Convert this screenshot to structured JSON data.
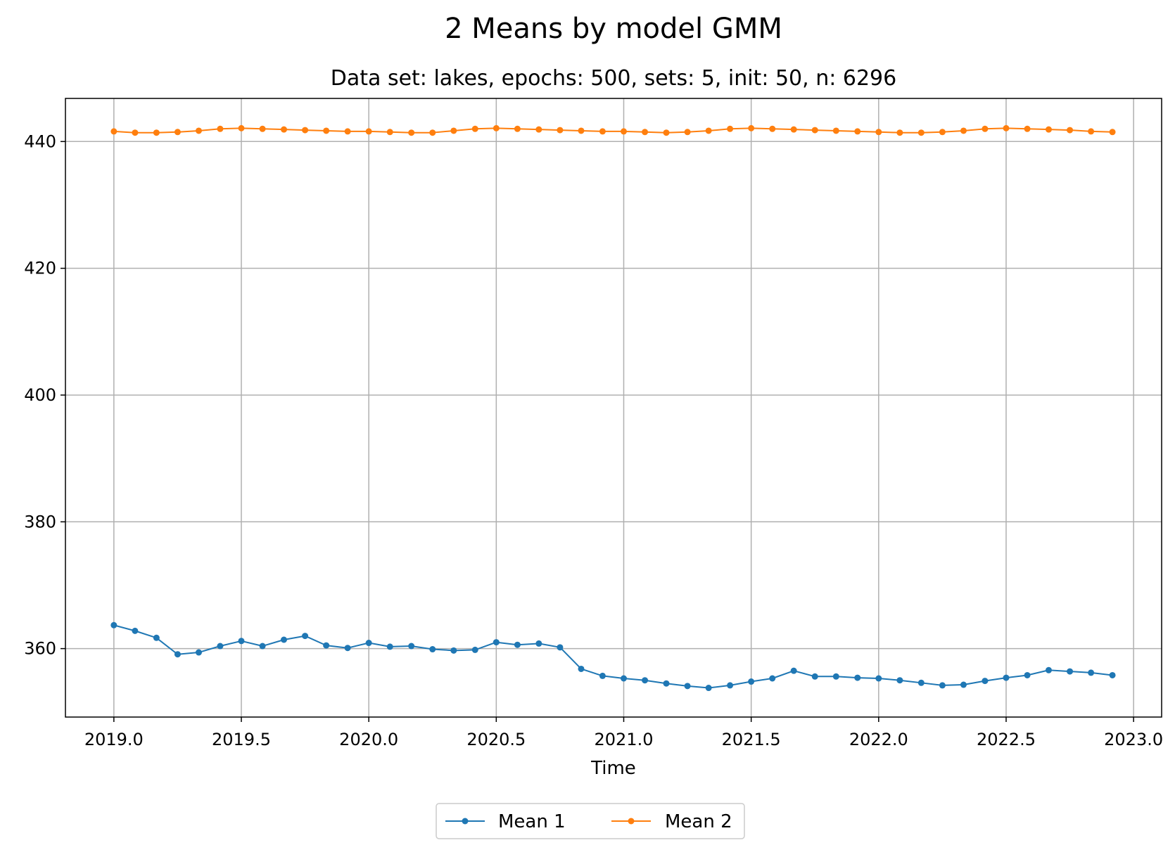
{
  "chart_data": {
    "type": "line",
    "title": "2 Means by model GMM",
    "subtitle": "Data set: lakes, epochs: 500, sets: 5, init: 50, n: 6296",
    "xlabel": "Time",
    "ylabel": "",
    "xlim": [
      2018.81,
      2023.11
    ],
    "ylim": [
      349.2,
      446.8
    ],
    "xticks": [
      "2019.0",
      "2019.5",
      "2020.0",
      "2020.5",
      "2021.0",
      "2021.5",
      "2022.0",
      "2022.5",
      "2023.0"
    ],
    "xtick_values": [
      2019.0,
      2019.5,
      2020.0,
      2020.5,
      2021.0,
      2021.5,
      2022.0,
      2022.5,
      2023.0
    ],
    "yticks": [
      "360",
      "380",
      "400",
      "420",
      "440"
    ],
    "ytick_values": [
      360,
      380,
      400,
      420,
      440
    ],
    "grid": true,
    "legend_position": "bottom-center",
    "x": [
      2019.0,
      2019.083,
      2019.167,
      2019.25,
      2019.333,
      2019.417,
      2019.5,
      2019.583,
      2019.667,
      2019.75,
      2019.833,
      2019.917,
      2020.0,
      2020.083,
      2020.167,
      2020.25,
      2020.333,
      2020.417,
      2020.5,
      2020.583,
      2020.667,
      2020.75,
      2020.833,
      2020.917,
      2021.0,
      2021.083,
      2021.167,
      2021.25,
      2021.333,
      2021.417,
      2021.5,
      2021.583,
      2021.667,
      2021.75,
      2021.833,
      2021.917,
      2022.0,
      2022.083,
      2022.167,
      2022.25,
      2022.333,
      2022.417,
      2022.5,
      2022.583,
      2022.667,
      2022.75,
      2022.833,
      2022.917
    ],
    "series": [
      {
        "name": "Mean 1",
        "color": "#1f77b4",
        "values": [
          363.7,
          362.8,
          361.7,
          359.1,
          359.4,
          360.4,
          361.2,
          360.4,
          361.4,
          362.0,
          360.5,
          360.1,
          360.9,
          360.3,
          360.4,
          359.9,
          359.7,
          359.8,
          361.0,
          360.6,
          360.8,
          360.2,
          356.8,
          355.7,
          355.3,
          355.0,
          354.5,
          354.1,
          353.8,
          354.2,
          354.8,
          355.3,
          356.5,
          355.6,
          355.6,
          355.4,
          355.3,
          355.0,
          354.6,
          354.2,
          354.3,
          354.9,
          355.4,
          355.8,
          356.6,
          356.4,
          356.2,
          355.8
        ]
      },
      {
        "name": "Mean 2",
        "color": "#ff7f0e",
        "values": [
          441.6,
          441.4,
          441.4,
          441.5,
          441.7,
          442.0,
          442.1,
          442.0,
          441.9,
          441.8,
          441.7,
          441.6,
          441.6,
          441.5,
          441.4,
          441.4,
          441.7,
          442.0,
          442.1,
          442.0,
          441.9,
          441.8,
          441.7,
          441.6,
          441.6,
          441.5,
          441.4,
          441.5,
          441.7,
          442.0,
          442.1,
          442.0,
          441.9,
          441.8,
          441.7,
          441.6,
          441.5,
          441.4,
          441.4,
          441.5,
          441.7,
          442.0,
          442.1,
          442.0,
          441.9,
          441.8,
          441.6,
          441.5
        ]
      }
    ]
  }
}
